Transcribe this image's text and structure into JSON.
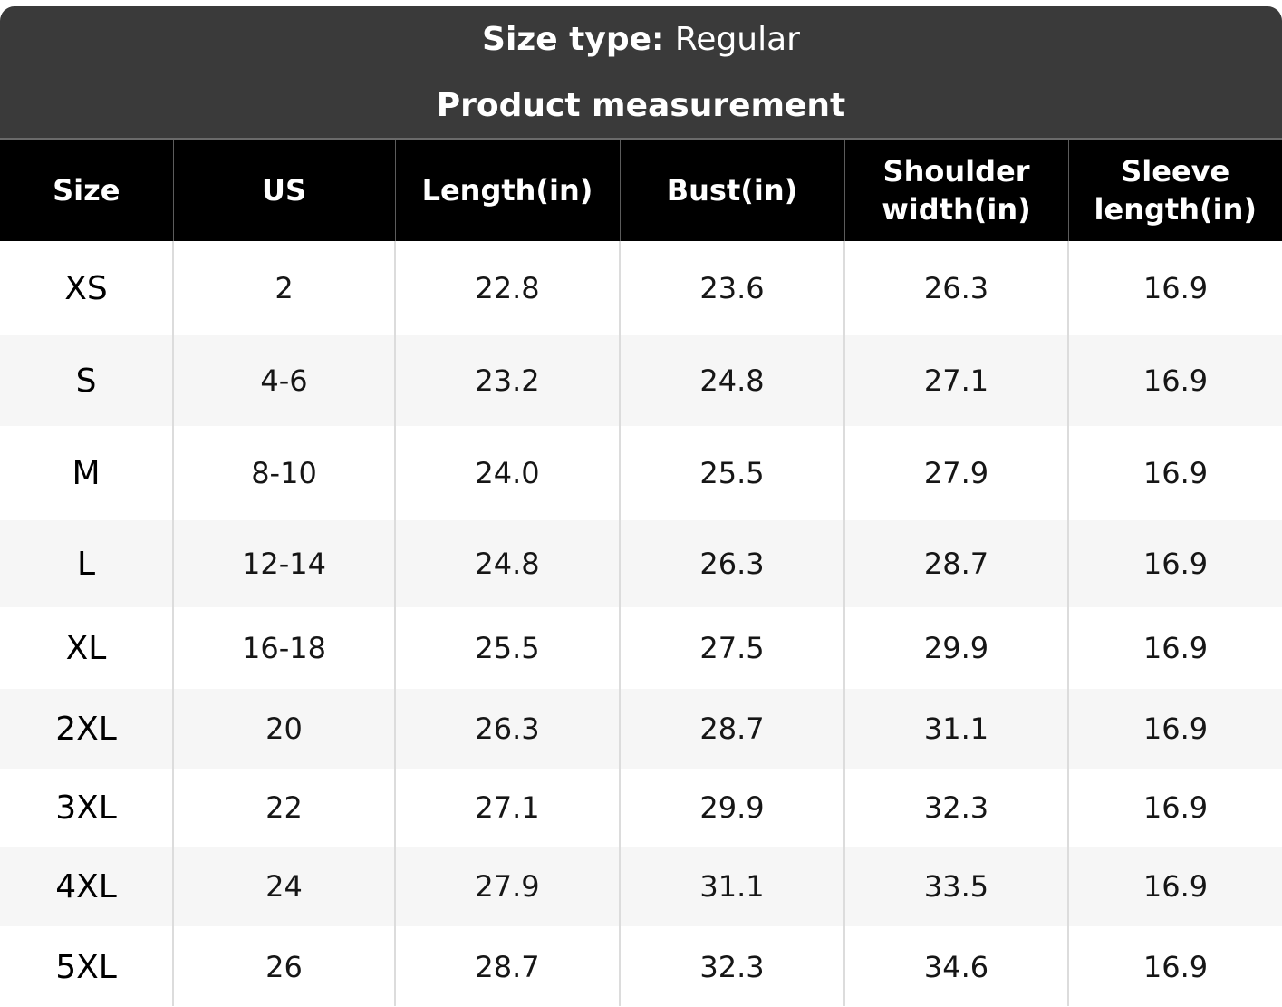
{
  "header": {
    "size_type_label": "Size type:",
    "size_type_value": "Regular",
    "title": "Product measurement"
  },
  "table": {
    "columns": [
      "Size",
      "US",
      "Length(in)",
      "Bust(in)",
      "Shoulder width(in)",
      "Sleeve length(in)"
    ],
    "rows": [
      [
        "XS",
        "2",
        "22.8",
        "23.6",
        "26.3",
        "16.9"
      ],
      [
        "S",
        "4-6",
        "23.2",
        "24.8",
        "27.1",
        "16.9"
      ],
      [
        "M",
        "8-10",
        "24.0",
        "25.5",
        "27.9",
        "16.9"
      ],
      [
        "L",
        "12-14",
        "24.8",
        "26.3",
        "28.7",
        "16.9"
      ],
      [
        "XL",
        "16-18",
        "25.5",
        "27.5",
        "29.9",
        "16.9"
      ],
      [
        "2XL",
        "20",
        "26.3",
        "28.7",
        "31.1",
        "16.9"
      ],
      [
        "3XL",
        "22",
        "27.1",
        "29.9",
        "32.3",
        "16.9"
      ],
      [
        "4XL",
        "24",
        "27.9",
        "31.1",
        "33.5",
        "16.9"
      ],
      [
        "5XL",
        "26",
        "28.7",
        "32.3",
        "34.6",
        "16.9"
      ]
    ]
  },
  "colors": {
    "top_band": "#3a3a3a",
    "header_row": "#000000",
    "row_alt": "#f6f6f6",
    "grid_line": "#dcdcdc"
  }
}
